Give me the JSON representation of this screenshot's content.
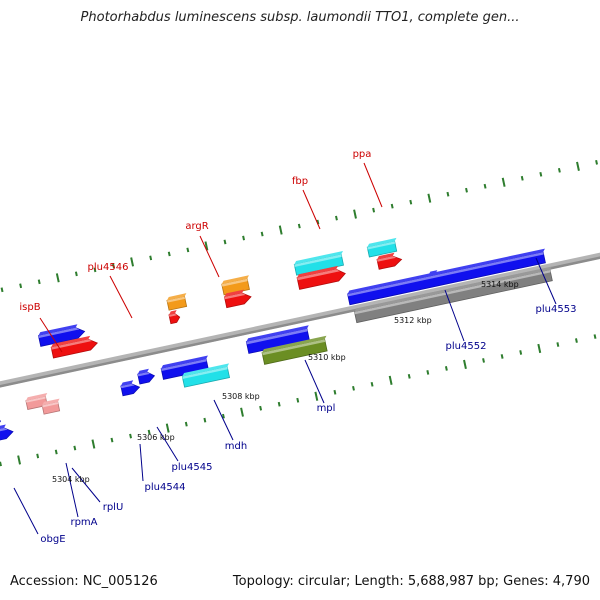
{
  "title": "Photorhabdus luminescens subsp. laumondii TTO1, complete gen...",
  "footer": {
    "accession": "Accession: NC_005126",
    "summary": "Topology: circular; Length: 5,688,987 bp; Genes: 4,790"
  },
  "colors": {
    "backbone": "#8c8c8c",
    "tick": "#2e7d2e",
    "label_red": "#cc0000",
    "label_blue": "#00008b",
    "blue": "#1010ee",
    "red": "#ee1010",
    "cyan": "#22e0e8",
    "orange": "#f39a1a",
    "olive": "#6b8e23",
    "gray": "#808080",
    "pink": "#f29a9a",
    "lightgray": "#c8c8c8"
  },
  "kbp_labels": [
    "5304 kbp",
    "5306 kbp",
    "5308 kbp",
    "5310 kbp",
    "5312 kbp",
    "5314 kbp"
  ],
  "gene_labels": [
    {
      "name": "ispB",
      "color": "red"
    },
    {
      "name": "plu4546",
      "color": "red"
    },
    {
      "name": "argR",
      "color": "red"
    },
    {
      "name": "fbp",
      "color": "red"
    },
    {
      "name": "ppa",
      "color": "red"
    },
    {
      "name": "obgE",
      "color": "blue"
    },
    {
      "name": "rpmA",
      "color": "blue"
    },
    {
      "name": "rplU",
      "color": "blue"
    },
    {
      "name": "plu4544",
      "color": "blue"
    },
    {
      "name": "plu4545",
      "color": "blue"
    },
    {
      "name": "mdh",
      "color": "blue"
    },
    {
      "name": "mpl",
      "color": "blue"
    },
    {
      "name": "plu4552",
      "color": "blue"
    },
    {
      "name": "plu4553",
      "color": "blue"
    }
  ]
}
